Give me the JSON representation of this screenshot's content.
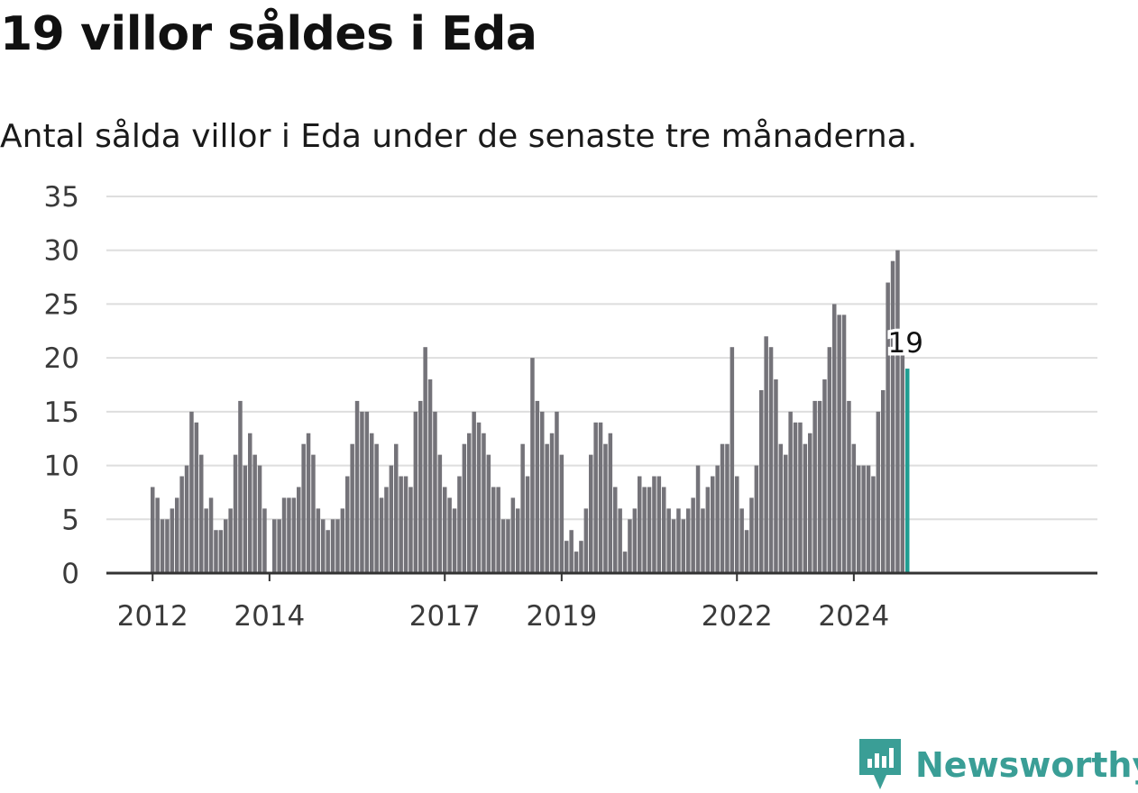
{
  "header": {
    "title": "19 villor såldes i Eda",
    "subtitle": "Antal sålda villor i Eda under de senaste tre månaderna."
  },
  "branding": {
    "name": "Newsworthy",
    "icon": "bar-chart-pin-icon",
    "color": "#3a9e96"
  },
  "colors": {
    "bar": "#747379",
    "highlight": "#1f9e92",
    "grid": "#dedede",
    "axis": "#333333"
  },
  "chart_data": {
    "type": "bar",
    "title": "19 villor såldes i Eda",
    "subtitle": "Antal sålda villor i Eda under de senaste tre månaderna.",
    "xlabel": "",
    "ylabel": "",
    "ylim": [
      0,
      35
    ],
    "yticks": [
      "0",
      "5",
      "10",
      "15",
      "20",
      "25",
      "30",
      "35"
    ],
    "xticks": [
      {
        "label": "2012",
        "x": "2012-01"
      },
      {
        "label": "2014",
        "x": "2014-01"
      },
      {
        "label": "2017",
        "x": "2017-01"
      },
      {
        "label": "2019",
        "x": "2019-01"
      },
      {
        "label": "2022",
        "x": "2022-01"
      },
      {
        "label": "2024",
        "x": "2024-01"
      }
    ],
    "grid": true,
    "legend": "none",
    "x_start": "2012-01",
    "x_end": "2024-12",
    "values": [
      8,
      7,
      5,
      5,
      6,
      7,
      9,
      10,
      15,
      14,
      11,
      6,
      7,
      4,
      4,
      5,
      6,
      11,
      16,
      10,
      13,
      11,
      10,
      6,
      null,
      5,
      5,
      7,
      7,
      7,
      8,
      12,
      13,
      11,
      6,
      5,
      4,
      5,
      5,
      6,
      9,
      12,
      16,
      15,
      15,
      13,
      12,
      7,
      8,
      10,
      12,
      9,
      9,
      8,
      15,
      16,
      21,
      18,
      15,
      11,
      8,
      7,
      6,
      9,
      12,
      13,
      15,
      14,
      13,
      11,
      8,
      8,
      5,
      5,
      7,
      6,
      12,
      9,
      20,
      16,
      15,
      12,
      13,
      15,
      11,
      3,
      4,
      2,
      3,
      6,
      11,
      14,
      14,
      12,
      13,
      8,
      6,
      2,
      5,
      6,
      9,
      8,
      8,
      9,
      9,
      8,
      6,
      5,
      6,
      5,
      6,
      7,
      10,
      6,
      8,
      9,
      10,
      12,
      12,
      21,
      9,
      6,
      4,
      7,
      10,
      17,
      22,
      21,
      18,
      12,
      11,
      15,
      14,
      14,
      12,
      13,
      16,
      16,
      18,
      21,
      25,
      24,
      24,
      16,
      12,
      10,
      10,
      10,
      9,
      15,
      17,
      27,
      29,
      30,
      21,
      19
    ],
    "highlight": {
      "x": "2024-12",
      "value": 19,
      "label": "19"
    }
  }
}
